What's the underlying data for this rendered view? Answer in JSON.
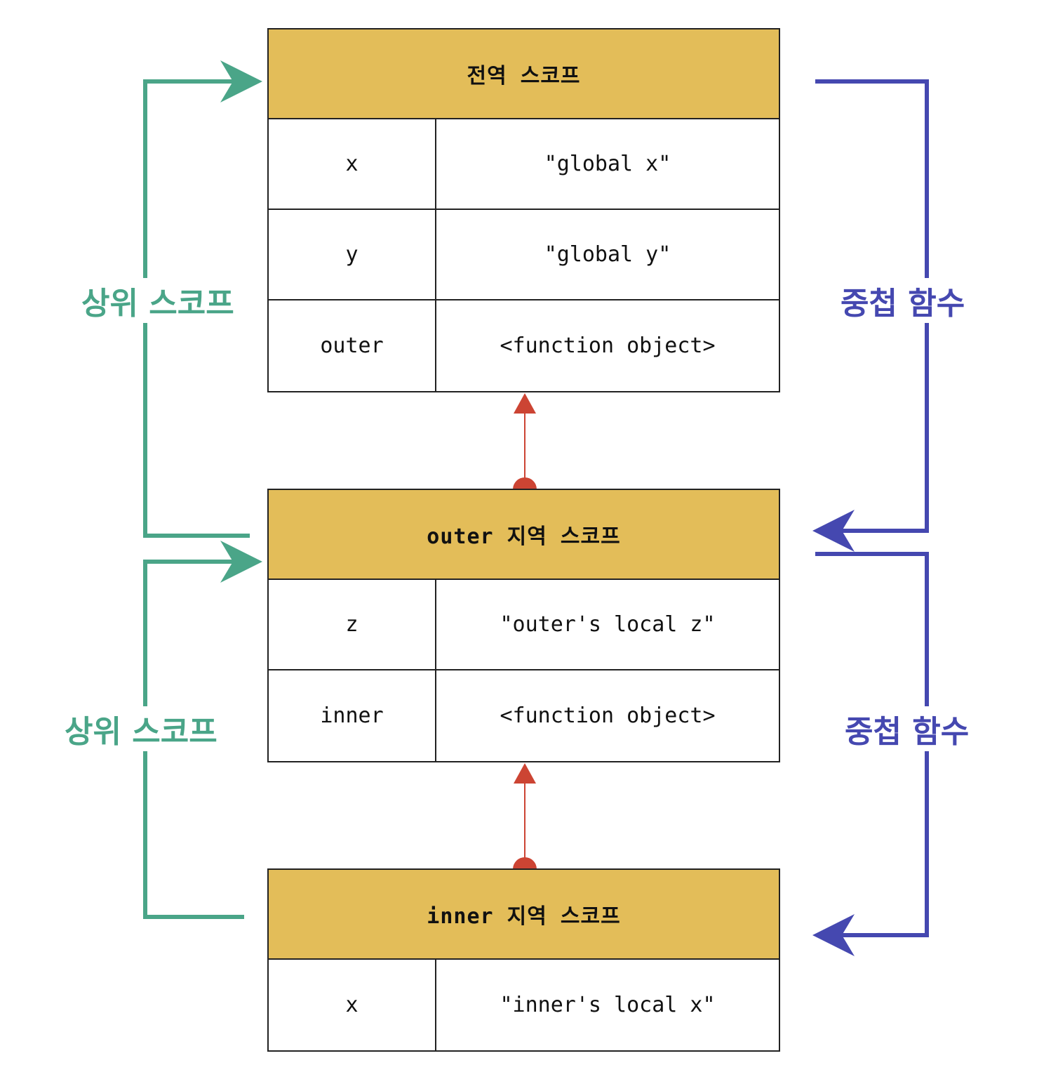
{
  "scopes": [
    {
      "title": "전역 스코프",
      "rows": [
        {
          "key": "x",
          "value": "\"global x\""
        },
        {
          "key": "y",
          "value": "\"global y\""
        },
        {
          "key": "outer",
          "value": "<function object>"
        }
      ]
    },
    {
      "title": "outer 지역 스코프",
      "rows": [
        {
          "key": "z",
          "value": "\"outer's local z\""
        },
        {
          "key": "inner",
          "value": "<function object>"
        }
      ]
    },
    {
      "title": "inner 지역 스코프",
      "rows": [
        {
          "key": "x",
          "value": "\"inner's local x\""
        }
      ]
    }
  ],
  "labels": {
    "parent_scope_top": "상위 스코프",
    "parent_scope_bottom": "상위 스코프",
    "nested_function_top": "중첩 함수",
    "nested_function_bottom": "중첩 함수"
  },
  "colors": {
    "header": "#e3bd59",
    "parent_scope": "#4aa588",
    "nested_function": "#4548b0",
    "chain_link": "#cc4433"
  }
}
